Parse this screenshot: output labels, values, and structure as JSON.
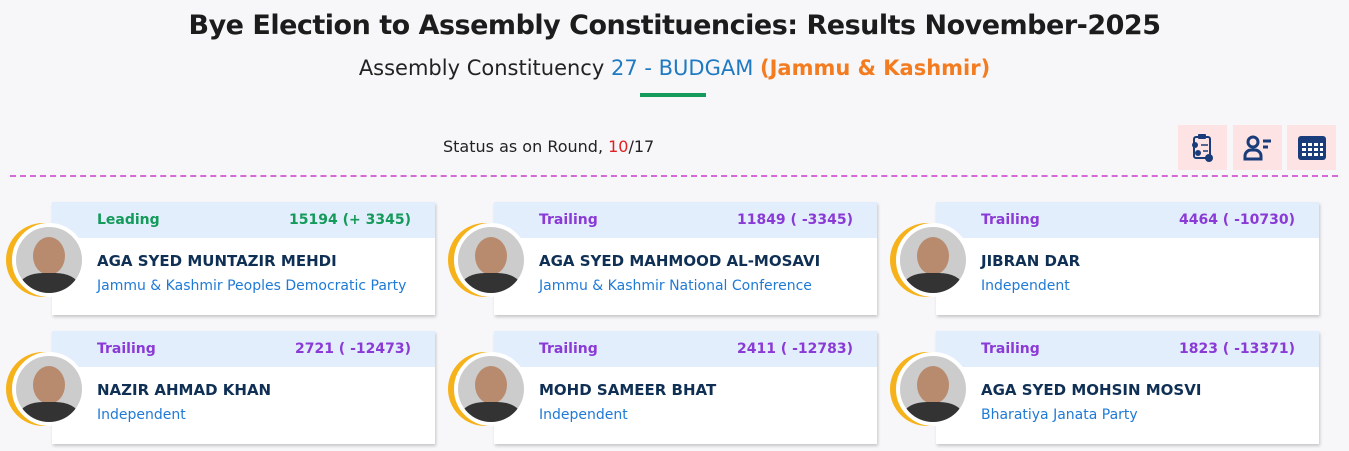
{
  "header": {
    "title": "Bye Election to Assembly Constituencies: Results November-2025",
    "subtitle_prefix": "Assembly Constituency",
    "constituency": "27 - BUDGAM",
    "state": "(Jammu & Kashmir)"
  },
  "status": {
    "label": "Status as on Round,",
    "round": "10",
    "total": "/17"
  },
  "toolbar": {
    "icons": [
      "clipboard-report-icon",
      "candidate-list-icon",
      "table-grid-icon"
    ],
    "bg_color": "#fde3e3",
    "icon_color": "#1b3c7a"
  },
  "colors": {
    "leading": "#149a5a",
    "trailing": "#8a3ad6",
    "card_header": "#e3eefc",
    "party": "#1f7ad6",
    "name": "#0f3054",
    "ring": "#f5b21a"
  },
  "candidates": [
    {
      "status": "Leading",
      "votes": "15194 (+ 3345)",
      "name": "AGA SYED MUNTAZIR MEHDI",
      "party": "Jammu & Kashmir Peoples Democratic Party"
    },
    {
      "status": "Trailing",
      "votes": "11849 ( -3345)",
      "name": "AGA SYED MAHMOOD AL-MOSAVI",
      "party": "Jammu & Kashmir National Conference"
    },
    {
      "status": "Trailing",
      "votes": "4464 ( -10730)",
      "name": "JIBRAN DAR",
      "party": "Independent"
    },
    {
      "status": "Trailing",
      "votes": "2721 ( -12473)",
      "name": "NAZIR AHMAD KHAN",
      "party": "Independent"
    },
    {
      "status": "Trailing",
      "votes": "2411 ( -12783)",
      "name": "MOHD SAMEER BHAT",
      "party": "Independent"
    },
    {
      "status": "Trailing",
      "votes": "1823 ( -13371)",
      "name": "AGA SYED MOHSIN MOSVI",
      "party": "Bharatiya Janata Party"
    }
  ]
}
